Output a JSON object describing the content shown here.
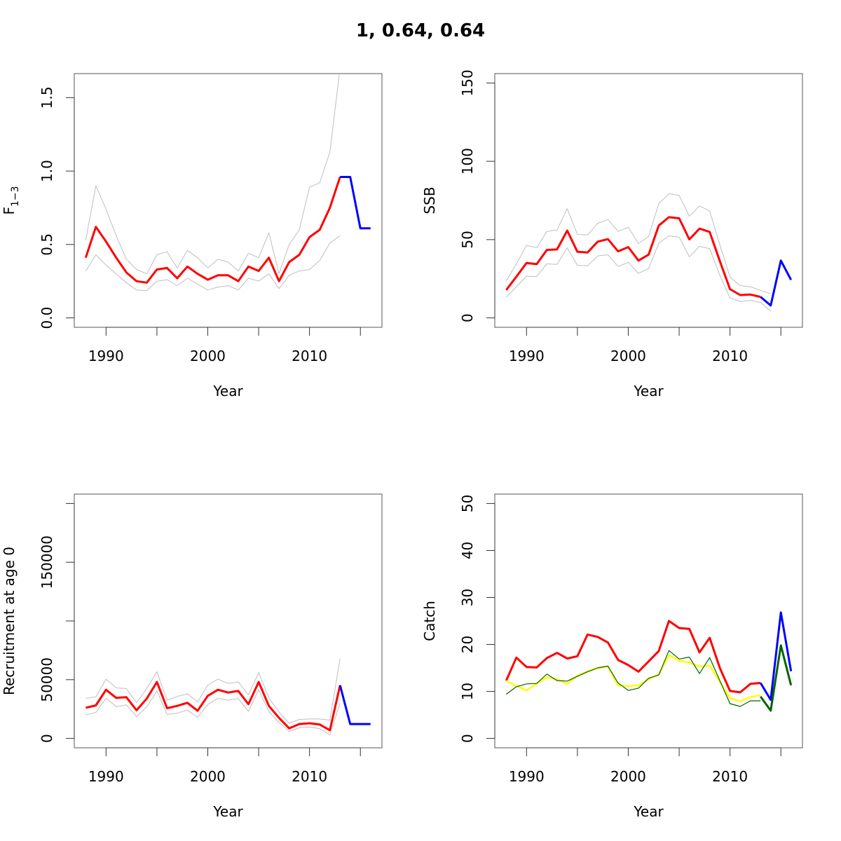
{
  "title": "1, 0.64, 0.64",
  "colors": {
    "estimate": "#ff0000",
    "ci": "#bebebe",
    "forecast": "#0000ff",
    "catch_model_fit": "#ffff00",
    "catch_observed": "#006400",
    "catch_forecast_landings": "#006400"
  },
  "chart_data": [
    {
      "id": "f",
      "type": "line",
      "title": "",
      "xlabel": "Year",
      "ylabel_main": "F",
      "ylabel_sub": "1−3",
      "xlim": [
        1988,
        2016
      ],
      "ylim": [
        0,
        1.6
      ],
      "xticks": [
        1990,
        1995,
        2000,
        2005,
        2010,
        2015
      ],
      "xtick_labels": [
        "1990",
        "",
        "2000",
        "",
        "2010",
        ""
      ],
      "yticks": [
        0,
        0.5,
        1.0,
        1.5
      ],
      "ytick_labels": [
        "0.0",
        "0.5",
        "1.0",
        "1.5"
      ],
      "series": [
        {
          "name": "upper",
          "role": "ci",
          "x": [
            1988,
            1989,
            1990,
            1991,
            1992,
            1993,
            1994,
            1995,
            1996,
            1997,
            1998,
            1999,
            2000,
            2001,
            2002,
            2003,
            2004,
            2005,
            2006,
            2007,
            2008,
            2009,
            2010,
            2011,
            2012,
            2013
          ],
          "values": [
            0.53,
            0.9,
            0.74,
            0.56,
            0.4,
            0.33,
            0.3,
            0.43,
            0.45,
            0.34,
            0.46,
            0.41,
            0.34,
            0.4,
            0.38,
            0.32,
            0.44,
            0.41,
            0.58,
            0.3,
            0.5,
            0.6,
            0.89,
            0.92,
            1.13,
            1.7
          ]
        },
        {
          "name": "lower",
          "role": "ci",
          "x": [
            1988,
            1989,
            1990,
            1991,
            1992,
            1993,
            1994,
            1995,
            1996,
            1997,
            1998,
            1999,
            2000,
            2001,
            2002,
            2003,
            2004,
            2005,
            2006,
            2007,
            2008,
            2009,
            2010,
            2011,
            2012,
            2013
          ],
          "values": [
            0.32,
            0.43,
            0.36,
            0.3,
            0.24,
            0.19,
            0.185,
            0.25,
            0.26,
            0.22,
            0.27,
            0.23,
            0.19,
            0.21,
            0.22,
            0.19,
            0.27,
            0.25,
            0.3,
            0.2,
            0.29,
            0.32,
            0.33,
            0.39,
            0.51,
            0.56
          ]
        },
        {
          "name": "estimate",
          "role": "estimate",
          "x": [
            1988,
            1989,
            1990,
            1991,
            1992,
            1993,
            1994,
            1995,
            1996,
            1997,
            1998,
            1999,
            2000,
            2001,
            2002,
            2003,
            2004,
            2005,
            2006,
            2007,
            2008,
            2009,
            2010,
            2011,
            2012,
            2013
          ],
          "values": [
            0.41,
            0.62,
            0.52,
            0.41,
            0.31,
            0.25,
            0.24,
            0.33,
            0.34,
            0.27,
            0.35,
            0.3,
            0.26,
            0.29,
            0.29,
            0.25,
            0.35,
            0.32,
            0.41,
            0.25,
            0.38,
            0.43,
            0.55,
            0.6,
            0.75,
            0.96
          ]
        },
        {
          "name": "forecast",
          "role": "forecast",
          "x": [
            2013,
            2014,
            2015,
            2016
          ],
          "values": [
            0.96,
            0.96,
            0.61,
            0.61
          ]
        }
      ]
    },
    {
      "id": "ssb",
      "type": "line",
      "title": "",
      "xlabel": "Year",
      "ylabel_main": "SSB",
      "ylabel_sub": "",
      "xlim": [
        1988,
        2016
      ],
      "ylim": [
        0,
        150
      ],
      "xticks": [
        1990,
        1995,
        2000,
        2005,
        2010,
        2015
      ],
      "xtick_labels": [
        "1990",
        "",
        "2000",
        "",
        "2010",
        ""
      ],
      "yticks": [
        0,
        50,
        100,
        150
      ],
      "ytick_labels": [
        "0",
        "50",
        "100",
        "150"
      ],
      "series": [
        {
          "name": "upper",
          "role": "ci",
          "x": [
            1988,
            1989,
            1990,
            1991,
            1992,
            1993,
            1994,
            1995,
            1996,
            1997,
            1998,
            1999,
            2000,
            2001,
            2002,
            2003,
            2004,
            2005,
            2006,
            2007,
            2008,
            2009,
            2010,
            2011,
            2012,
            2013,
            2014
          ],
          "values": [
            23.6,
            34.5,
            46.3,
            44.8,
            55.2,
            56.1,
            69.7,
            53.3,
            53.0,
            60.4,
            62.8,
            55.2,
            57.8,
            47.5,
            52.0,
            73.0,
            79.3,
            78.2,
            64.9,
            71.5,
            68.2,
            46.7,
            26.1,
            20.6,
            19.9,
            17.6,
            15.4
          ]
        },
        {
          "name": "lower",
          "role": "ci",
          "x": [
            1988,
            1989,
            1990,
            1991,
            1992,
            1993,
            1994,
            1995,
            1996,
            1997,
            1998,
            1999,
            2000,
            2001,
            2002,
            2003,
            2004,
            2005,
            2006,
            2007,
            2008,
            2009,
            2010,
            2011,
            2012,
            2013,
            2014
          ],
          "values": [
            13.1,
            19.9,
            26.6,
            26.4,
            34.5,
            34.2,
            44.8,
            33.6,
            33.3,
            39.6,
            40.3,
            32.8,
            35.5,
            28.4,
            31.5,
            47.8,
            52.4,
            51.6,
            39.0,
            45.7,
            44.2,
            27.3,
            12.8,
            10.4,
            11.2,
            9.9,
            4.2
          ]
        },
        {
          "name": "estimate",
          "role": "estimate",
          "x": [
            1988,
            1989,
            1990,
            1991,
            1992,
            1993,
            1994,
            1995,
            1996,
            1997,
            1998,
            1999,
            2000,
            2001,
            2002,
            2003,
            2004,
            2005,
            2006,
            2007,
            2008,
            2009,
            2010,
            2011,
            2012,
            2013
          ],
          "values": [
            17.8,
            26.3,
            35.1,
            34.3,
            43.4,
            43.7,
            55.7,
            42.2,
            41.8,
            48.7,
            50.3,
            42.5,
            45.2,
            36.6,
            40.4,
            59.0,
            64.3,
            63.6,
            50.1,
            57.0,
            54.9,
            36.3,
            18.4,
            14.6,
            14.9,
            13.4
          ]
        },
        {
          "name": "forecast",
          "role": "forecast",
          "x": [
            2013,
            2014,
            2015,
            2016
          ],
          "values": [
            13.4,
            7.9,
            36.6,
            24.3
          ]
        }
      ]
    },
    {
      "id": "recruitment",
      "type": "line",
      "title": "",
      "xlabel": "Year",
      "ylabel_main": "Recruitment at age 0",
      "ylabel_sub": "",
      "xlim": [
        1988,
        2016
      ],
      "ylim": [
        0,
        200000
      ],
      "xticks": [
        1990,
        1995,
        2000,
        2005,
        2010,
        2015
      ],
      "xtick_labels": [
        "1990",
        "",
        "2000",
        "",
        "2010",
        ""
      ],
      "yticks": [
        0,
        50000,
        100000,
        150000,
        200000
      ],
      "ytick_labels": [
        "0",
        "50000",
        "",
        "150000",
        ""
      ],
      "series": [
        {
          "name": "upper",
          "role": "ci",
          "x": [
            1988,
            1989,
            1990,
            1991,
            1992,
            1993,
            1994,
            1995,
            1996,
            1997,
            1998,
            1999,
            2000,
            2001,
            2002,
            2003,
            2004,
            2005,
            2006,
            2007,
            2008,
            2009,
            2010,
            2011,
            2012,
            2013
          ],
          "values": [
            34100,
            35300,
            50400,
            43000,
            42400,
            30500,
            42400,
            56800,
            32500,
            35700,
            38000,
            30900,
            45400,
            50400,
            46800,
            48000,
            37100,
            56000,
            34500,
            22500,
            12900,
            16100,
            16500,
            16500,
            15500,
            67900
          ]
        },
        {
          "name": "lower",
          "role": "ci",
          "x": [
            1988,
            1989,
            1990,
            1991,
            1992,
            1993,
            1994,
            1995,
            1996,
            1997,
            1998,
            1999,
            2000,
            2001,
            2002,
            2003,
            2004,
            2005,
            2006,
            2007,
            2008,
            2009,
            2010,
            2011,
            2012,
            2013
          ],
          "values": [
            19900,
            22100,
            34100,
            27100,
            28500,
            18500,
            26900,
            40400,
            20500,
            21500,
            24100,
            17900,
            28900,
            34100,
            32500,
            33900,
            22900,
            41400,
            22900,
            13500,
            6000,
            9000,
            9800,
            8200,
            3000,
            30100
          ]
        },
        {
          "name": "estimate",
          "role": "estimate",
          "x": [
            1988,
            1989,
            1990,
            1991,
            1992,
            1993,
            1994,
            1995,
            1996,
            1997,
            1998,
            1999,
            2000,
            2001,
            2002,
            2003,
            2004,
            2005,
            2006,
            2007,
            2008,
            2009,
            2010,
            2011,
            2012,
            2013
          ],
          "values": [
            26100,
            28100,
            41400,
            34500,
            35100,
            23900,
            33900,
            48000,
            25700,
            27700,
            30300,
            23500,
            36300,
            41400,
            39000,
            40400,
            29100,
            48000,
            27700,
            17500,
            8600,
            12200,
            12900,
            11800,
            7000,
            45200
          ]
        },
        {
          "name": "forecast",
          "role": "forecast",
          "x": [
            2013,
            2014,
            2015,
            2016
          ],
          "values": [
            45200,
            12200,
            12200,
            12200
          ]
        }
      ]
    },
    {
      "id": "catch",
      "type": "line",
      "title": "",
      "xlabel": "Year",
      "ylabel_main": "Catch",
      "ylabel_sub": "",
      "xlim": [
        1988,
        2016
      ],
      "ylim": [
        0,
        50
      ],
      "xticks": [
        1990,
        1995,
        2000,
        2005,
        2010,
        2015
      ],
      "xtick_labels": [
        "1990",
        "",
        "2000",
        "",
        "2010",
        ""
      ],
      "yticks": [
        0,
        10,
        20,
        30,
        40,
        50
      ],
      "ytick_labels": [
        "0",
        "10",
        "20",
        "30",
        "40",
        "50"
      ],
      "series": [
        {
          "name": "estimate",
          "role": "estimate",
          "x": [
            1988,
            1989,
            1990,
            1991,
            1992,
            1993,
            1994,
            1995,
            1996,
            1997,
            1998,
            1999,
            2000,
            2001,
            2002,
            2003,
            2004,
            2005,
            2006,
            2007,
            2008,
            2009,
            2010,
            2011,
            2012,
            2013
          ],
          "values": [
            12.3,
            17.2,
            15.2,
            15.1,
            17.1,
            18.2,
            17.0,
            17.5,
            22.1,
            21.6,
            20.4,
            16.7,
            15.6,
            14.2,
            16.4,
            18.6,
            25.0,
            23.5,
            23.3,
            18.3,
            21.4,
            15.0,
            10.1,
            9.8,
            11.6,
            11.8
          ]
        },
        {
          "name": "model-fit",
          "role": "catch_model_fit",
          "x": [
            1988,
            1989,
            1990,
            1991,
            1992,
            1993,
            1994,
            1995,
            1996,
            1997,
            1998,
            1999,
            2000,
            2001,
            2002,
            2003,
            2004,
            2005,
            2006,
            2007,
            2008,
            2009,
            2010,
            2011,
            2012,
            2013
          ],
          "values": [
            12.2,
            11.2,
            10.2,
            11.7,
            13.0,
            12.6,
            11.6,
            13.4,
            14.2,
            15.0,
            15.3,
            11.3,
            11.1,
            11.3,
            12.6,
            13.6,
            17.7,
            16.5,
            16.1,
            15.3,
            15.5,
            12.1,
            8.5,
            7.9,
            8.8,
            9.2
          ]
        },
        {
          "name": "observed",
          "role": "catch_observed",
          "x": [
            1988,
            1989,
            1990,
            1991,
            1992,
            1993,
            1994,
            1995,
            1996,
            1997,
            1998,
            1999,
            2000,
            2001,
            2002,
            2003,
            2004,
            2005,
            2006,
            2007,
            2008,
            2009,
            2010,
            2011,
            2012,
            2013
          ],
          "values": [
            9.4,
            11.0,
            11.6,
            11.7,
            13.7,
            12.3,
            12.2,
            13.2,
            14.2,
            15.0,
            15.4,
            11.8,
            10.2,
            10.7,
            12.8,
            13.5,
            18.7,
            16.9,
            17.3,
            13.8,
            17.2,
            12.3,
            7.4,
            6.8,
            8.0,
            8.0
          ]
        },
        {
          "name": "forecast",
          "role": "forecast",
          "x": [
            2013,
            2014,
            2015,
            2016
          ],
          "values": [
            11.8,
            8.2,
            26.8,
            14.3
          ]
        },
        {
          "name": "forecast-landings",
          "role": "catch_forecast_landings",
          "x": [
            2013,
            2014,
            2015,
            2016
          ],
          "values": [
            8.9,
            5.9,
            19.8,
            11.3
          ]
        }
      ]
    }
  ]
}
